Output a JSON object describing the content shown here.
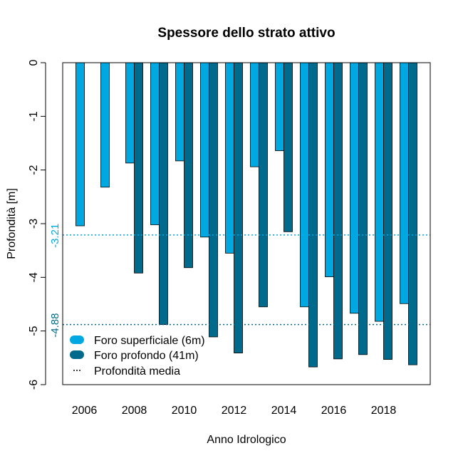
{
  "chart_data": {
    "type": "bar",
    "title": "Spessore dello strato attivo",
    "xlabel": "Anno Idrologico",
    "ylabel": "Profondità [m]",
    "ylim": [
      -6,
      0
    ],
    "yticks": [
      0,
      -1,
      -2,
      -3,
      -4,
      -5,
      -6
    ],
    "ytick_labels": [
      "0",
      "-1",
      "-2",
      "-3",
      "-4",
      "-5",
      "-6"
    ],
    "categories": [
      2006,
      2007,
      2008,
      2009,
      2010,
      2011,
      2012,
      2013,
      2014,
      2015,
      2016,
      2017,
      2018,
      2019
    ],
    "xtick_labels": [
      "2006",
      "2008",
      "2010",
      "2012",
      "2014",
      "2016",
      "2018"
    ],
    "series": [
      {
        "name": "Foro superficiale (6m)",
        "color": "#00a8e1",
        "values": [
          -3.04,
          -2.32,
          -1.87,
          -3.02,
          -1.83,
          -3.25,
          -3.55,
          -1.94,
          -1.64,
          -4.55,
          -3.99,
          -4.67,
          -4.82,
          -4.49
        ]
      },
      {
        "name": "Foro profondo (41m)",
        "color": "#006a8c",
        "values": [
          null,
          null,
          -3.92,
          -4.88,
          -3.82,
          -5.11,
          -5.41,
          -4.55,
          -3.15,
          -5.67,
          -5.52,
          -5.44,
          -5.53,
          -5.63
        ]
      }
    ],
    "mean_lines": [
      {
        "label": "-3.21",
        "value": -3.21,
        "color": "#00a8e1"
      },
      {
        "label": "-4.88",
        "value": -4.88,
        "color": "#006a8c"
      }
    ],
    "legend": {
      "position": "bottom-left",
      "entries": [
        "Foro superficiale (6m)",
        "Foro profondo (41m)",
        "Profondità media"
      ]
    }
  }
}
